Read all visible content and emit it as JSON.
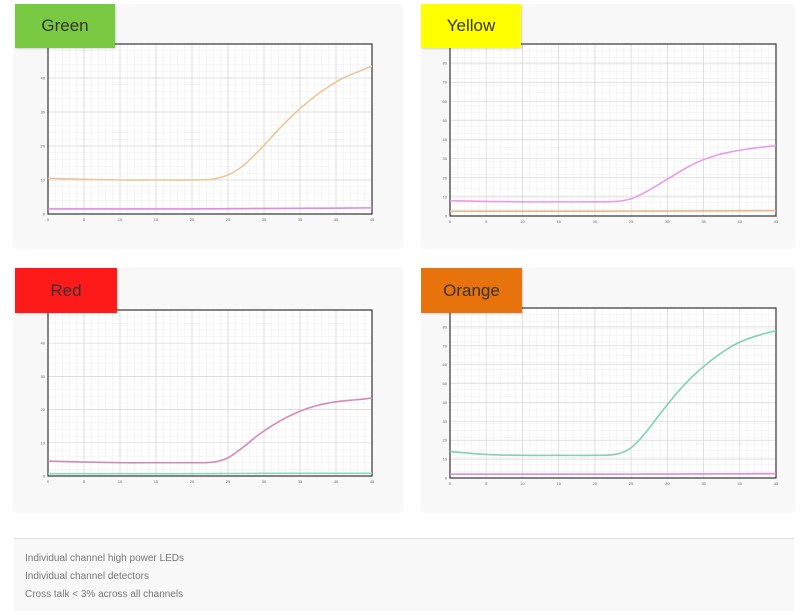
{
  "panels": [
    {
      "label": "Green",
      "badge_color": "#7ac943"
    },
    {
      "label": "Yellow",
      "badge_color": "#ffff00"
    },
    {
      "label": "Red",
      "badge_color": "#ff1a1a"
    },
    {
      "label": "Orange",
      "badge_color": "#e8730c"
    }
  ],
  "footer": {
    "lines": [
      "Individual channel high power LEDs",
      "Individual channel detectors",
      "Cross talk < 3% across all channels"
    ]
  },
  "chart_data": [
    {
      "type": "line",
      "panel": "Green",
      "x_ticks": [
        0,
        5,
        10,
        15,
        20,
        25,
        30,
        35,
        40,
        45
      ],
      "y_ticks": [
        0,
        10,
        20,
        30,
        40,
        50
      ],
      "xlim": [
        0,
        45
      ],
      "ylim": [
        0,
        50
      ],
      "grid": true,
      "series": [
        {
          "color": "#e8c89a",
          "x": [
            0,
            5,
            10,
            15,
            20,
            23,
            25,
            27,
            29,
            31,
            33,
            35,
            37,
            39,
            41,
            43,
            45
          ],
          "y": [
            10.5,
            10.2,
            10,
            10,
            10,
            10.3,
            11.5,
            14,
            18,
            22.5,
            27,
            31,
            34.5,
            37.5,
            40,
            41.8,
            43.5
          ]
        },
        {
          "color": "#d98ee0",
          "x": [
            0,
            10,
            20,
            30,
            40,
            45
          ],
          "y": [
            1.5,
            1.5,
            1.5,
            1.6,
            1.7,
            1.8
          ]
        }
      ]
    },
    {
      "type": "line",
      "panel": "Yellow",
      "x_ticks": [
        0,
        5,
        10,
        15,
        20,
        25,
        30,
        35,
        40,
        45
      ],
      "y_ticks": [
        0,
        10,
        20,
        30,
        40,
        50,
        60,
        70,
        80,
        90
      ],
      "xlim": [
        0,
        45
      ],
      "ylim": [
        0,
        90
      ],
      "grid": true,
      "series": [
        {
          "color": "#e89ce8",
          "x": [
            0,
            5,
            10,
            15,
            20,
            23,
            25,
            27,
            29,
            31,
            33,
            35,
            37,
            39,
            41,
            43,
            45
          ],
          "y": [
            8,
            7.6,
            7.4,
            7.4,
            7.4,
            7.6,
            9,
            12.5,
            17,
            21.5,
            26,
            29.5,
            32,
            33.7,
            35,
            36,
            36.8
          ]
        },
        {
          "color": "#e8b88a",
          "x": [
            0,
            10,
            20,
            30,
            40,
            45
          ],
          "y": [
            2.5,
            2.5,
            2.5,
            2.6,
            2.7,
            2.8
          ]
        }
      ]
    },
    {
      "type": "line",
      "panel": "Red",
      "x_ticks": [
        0,
        5,
        10,
        15,
        20,
        25,
        30,
        35,
        40,
        45
      ],
      "y_ticks": [
        0,
        10,
        20,
        30,
        40,
        50
      ],
      "xlim": [
        0,
        45
      ],
      "ylim": [
        0,
        50
      ],
      "grid": true,
      "series": [
        {
          "color": "#d48ab8",
          "x": [
            0,
            5,
            10,
            15,
            20,
            23,
            25,
            27,
            29,
            31,
            33,
            35,
            37,
            39,
            41,
            43,
            45
          ],
          "y": [
            4.5,
            4.2,
            4,
            4,
            4,
            4.2,
            5.5,
            8.5,
            12,
            15,
            17.5,
            19.5,
            21,
            22,
            22.6,
            23,
            23.5
          ]
        },
        {
          "color": "#8fd6c0",
          "x": [
            0,
            10,
            20,
            30,
            40,
            45
          ],
          "y": [
            0.7,
            0.7,
            0.7,
            0.8,
            0.8,
            0.8
          ]
        }
      ]
    },
    {
      "type": "line",
      "panel": "Orange",
      "x_ticks": [
        0,
        5,
        10,
        15,
        20,
        25,
        30,
        35,
        40,
        45
      ],
      "y_ticks": [
        0,
        10,
        20,
        30,
        40,
        50,
        60,
        70,
        80,
        90
      ],
      "xlim": [
        0,
        45
      ],
      "ylim": [
        0,
        90
      ],
      "grid": true,
      "series": [
        {
          "color": "#7fd1b4",
          "x": [
            0,
            5,
            10,
            15,
            20,
            23,
            25,
            27,
            29,
            31,
            33,
            35,
            37,
            39,
            41,
            43,
            45
          ],
          "y": [
            14,
            12.5,
            12,
            12,
            12,
            12.6,
            16,
            24,
            34,
            43.5,
            52,
            59,
            65,
            70,
            73.5,
            76,
            78
          ]
        },
        {
          "color": "#d98ee0",
          "x": [
            0,
            10,
            20,
            30,
            40,
            45
          ],
          "y": [
            2,
            2,
            2,
            2.1,
            2.2,
            2.3
          ]
        }
      ]
    }
  ]
}
